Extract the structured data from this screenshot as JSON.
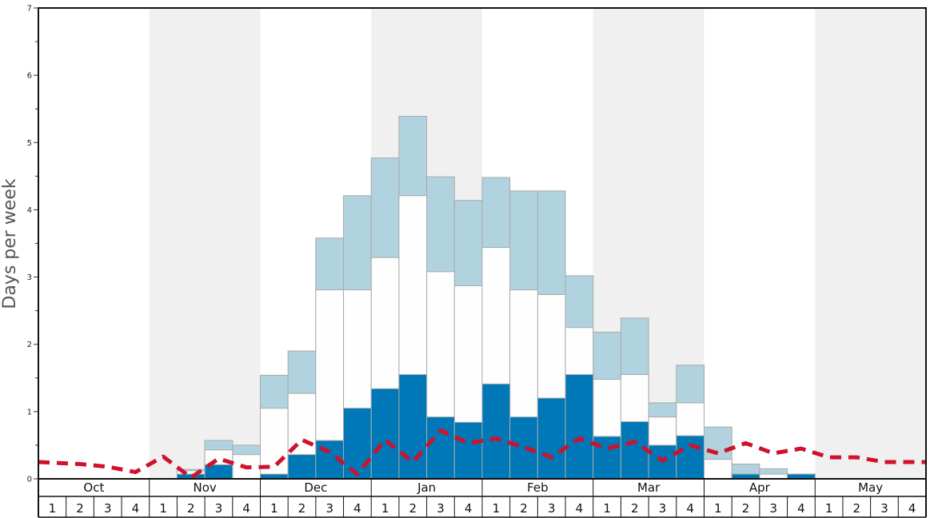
{
  "chart_data": {
    "type": "bar",
    "ylabel": "Days per week",
    "ylim": [
      0,
      7
    ],
    "yticks": [
      "0",
      "1",
      "2",
      "3",
      "4",
      "5",
      "6",
      "7"
    ],
    "months": [
      "Oct",
      "Nov",
      "Dec",
      "Jan",
      "Feb",
      "Mar",
      "Apr",
      "May"
    ],
    "week_labels": [
      "1",
      "2",
      "3",
      "4"
    ],
    "stacked": false,
    "series": [
      {
        "color": "#b0d3df",
        "values": [
          0,
          0,
          0,
          0,
          0,
          0.14,
          0.57,
          0.5,
          1.54,
          1.9,
          3.58,
          4.21,
          4.77,
          5.39,
          4.49,
          4.14,
          4.48,
          4.28,
          4.28,
          3.02,
          2.18,
          2.39,
          1.13,
          1.69,
          0.77,
          0.22,
          0.15,
          0.07,
          0,
          0,
          0,
          0
        ]
      },
      {
        "color": "#fefefe",
        "values": [
          0,
          0,
          0,
          0,
          0,
          0.12,
          0.43,
          0.36,
          1.05,
          1.27,
          2.81,
          2.81,
          3.29,
          4.21,
          3.08,
          2.87,
          3.44,
          2.81,
          2.74,
          2.25,
          1.48,
          1.55,
          0.92,
          1.13,
          0.29,
          0.07,
          0.07,
          0.07,
          0,
          0,
          0,
          0
        ]
      },
      {
        "color": "#0077b6",
        "values": [
          0,
          0,
          0,
          0,
          0,
          0.07,
          0.21,
          0,
          0.07,
          0.36,
          0.57,
          1.05,
          1.34,
          1.55,
          0.92,
          0.84,
          1.41,
          0.92,
          1.2,
          1.55,
          0.63,
          0.85,
          0.5,
          0.64,
          0,
          0.07,
          0,
          0.07,
          0,
          0,
          0,
          0
        ]
      }
    ],
    "line": {
      "color": "#d0112b",
      "style": "dashed",
      "values": [
        0.25,
        0.22,
        0.18,
        0.1,
        0.33,
        0.02,
        0.3,
        0.17,
        0.18,
        0.58,
        0.4,
        0.07,
        0.58,
        0.25,
        0.72,
        0.53,
        0.6,
        0.47,
        0.32,
        0.6,
        0.45,
        0.55,
        0.27,
        0.5,
        0.38,
        0.53,
        0.38,
        0.45,
        0.32,
        0.32,
        0.25,
        0.25
      ]
    },
    "grid": false,
    "shading": "alternate months"
  }
}
